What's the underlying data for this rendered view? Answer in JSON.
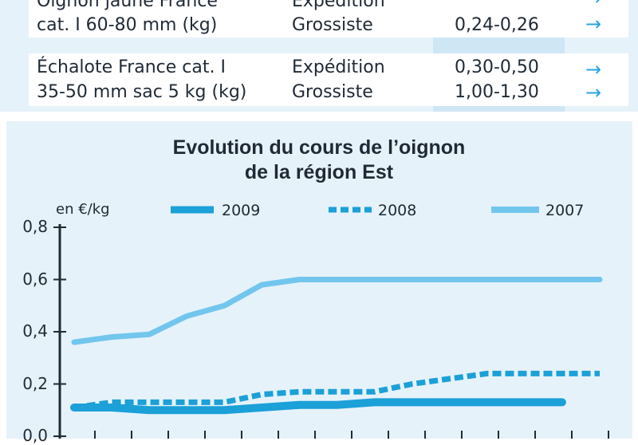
{
  "table": {
    "rows": [
      {
        "product_lines": [
          "Oignon jaune France",
          "cat. I 60-80 mm (kg)"
        ],
        "stages": [
          "Expédition",
          "Grossiste"
        ],
        "prices": [
          "",
          "0,24-0,26"
        ]
      },
      {
        "product_lines": [
          "Échalote France cat. I",
          "35-50 mm sac 5 kg (kg)"
        ],
        "stages": [
          "Expédition",
          "Grossiste"
        ],
        "prices": [
          "0,30-0,50",
          "1,00-1,30"
        ]
      }
    ],
    "arrow_glyph": "→"
  },
  "chart_data": {
    "type": "line",
    "title": "Evolution du cours de l’oignon de la région Est",
    "title_lines": [
      "Evolution du cours de l’oignon",
      "de la région Est"
    ],
    "ylabel": "en €/kg",
    "ylim": [
      0,
      0.8
    ],
    "yticks": [
      "0,0",
      "0,2",
      "0,4",
      "0,6",
      "0,8"
    ],
    "ytick_values": [
      0,
      0.2,
      0.4,
      0.6,
      0.8
    ],
    "x": [
      0,
      1,
      2,
      3,
      4,
      5,
      6,
      7,
      8,
      9,
      10,
      11,
      12,
      13,
      14
    ],
    "legend_position": "top",
    "series": [
      {
        "name": "2009",
        "style": "solid-thick",
        "color": "#1ba0d8",
        "values": [
          0.11,
          0.11,
          0.1,
          0.1,
          0.1,
          0.11,
          0.12,
          0.12,
          0.13,
          0.13,
          0.13,
          0.13,
          0.13,
          0.13,
          null
        ]
      },
      {
        "name": "2008",
        "style": "dashed",
        "color": "#1ba0d8",
        "values": [
          0.11,
          0.13,
          0.13,
          0.13,
          0.13,
          0.16,
          0.17,
          0.17,
          0.17,
          0.2,
          0.22,
          0.24,
          0.24,
          0.24,
          0.24
        ]
      },
      {
        "name": "2007",
        "style": "solid-light",
        "color": "#72c6ee",
        "values": [
          0.36,
          0.38,
          0.39,
          0.46,
          0.5,
          0.58,
          0.6,
          0.6,
          0.6,
          0.6,
          0.6,
          0.6,
          0.6,
          0.6,
          0.6
        ]
      }
    ]
  }
}
